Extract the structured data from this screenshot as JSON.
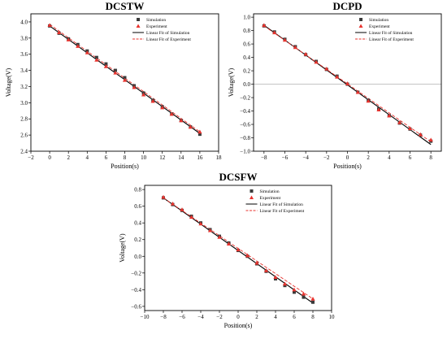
{
  "colors": {
    "simulation": "#3a3a3a",
    "experiment": "#e8332e",
    "sim_fit": "#000000",
    "exp_fit": "#e8332e",
    "zero_line": "#bbbbbb"
  },
  "legend_labels": [
    "Simulation",
    "Experiment",
    "Linear Fit of Simulation",
    "Linear Fit of Experiment"
  ],
  "chart_data": [
    {
      "type": "scatter",
      "title": "DCSTW",
      "xlabel": "Position(s)",
      "ylabel": "Voltage(V)",
      "xlim": [
        -2,
        18
      ],
      "ylim": [
        2.4,
        4.1
      ],
      "xticks": [
        -2,
        0,
        2,
        4,
        6,
        8,
        10,
        12,
        14,
        16,
        18
      ],
      "yticks": [
        2.4,
        2.6,
        2.8,
        3.0,
        3.2,
        3.4,
        3.6,
        3.8,
        4.0
      ],
      "tick_labels_x": [
        "−2",
        "0",
        "2",
        "4",
        "6",
        "8",
        "10",
        "12",
        "14",
        "16",
        "18"
      ],
      "tick_labels_y": [
        "2.4",
        "2.6",
        "2.8",
        "3.0",
        "3.2",
        "3.4",
        "3.6",
        "3.8",
        "4.0"
      ],
      "legend_position": "top-right",
      "zero_line": false,
      "series": [
        {
          "name": "Simulation",
          "marker": "square",
          "x": [
            0,
            1,
            2,
            3,
            4,
            5,
            6,
            7,
            8,
            9,
            10,
            11,
            12,
            13,
            14,
            15,
            16
          ],
          "y": [
            3.95,
            3.86,
            3.79,
            3.72,
            3.64,
            3.56,
            3.48,
            3.4,
            3.31,
            3.21,
            3.12,
            3.03,
            2.95,
            2.86,
            2.78,
            2.7,
            2.61
          ]
        },
        {
          "name": "Experiment",
          "marker": "triangle",
          "x": [
            0,
            1,
            2,
            3,
            4,
            5,
            6,
            7,
            8,
            9,
            10,
            11,
            12,
            13,
            14,
            15,
            16
          ],
          "y": [
            3.96,
            3.87,
            3.78,
            3.7,
            3.62,
            3.53,
            3.45,
            3.37,
            3.28,
            3.19,
            3.1,
            3.02,
            2.94,
            2.86,
            2.78,
            2.7,
            2.64
          ]
        },
        {
          "name": "Linear Fit of Simulation",
          "line": "solid",
          "x": [
            0,
            16
          ],
          "y": [
            3.95,
            2.62
          ]
        },
        {
          "name": "Linear Fit of Experiment",
          "line": "dashed",
          "x": [
            0,
            16
          ],
          "y": [
            3.97,
            2.64
          ]
        }
      ]
    },
    {
      "type": "scatter",
      "title": "DCPD",
      "xlabel": "Position(s)",
      "ylabel": "Voltage(V)",
      "xlim": [
        -9,
        9
      ],
      "ylim": [
        -1.0,
        1.05
      ],
      "xticks": [
        -8,
        -6,
        -4,
        -2,
        0,
        2,
        4,
        6,
        8
      ],
      "yticks": [
        -1.0,
        -0.8,
        -0.6,
        -0.4,
        -0.2,
        0.0,
        0.2,
        0.4,
        0.6,
        0.8,
        1.0
      ],
      "tick_labels_x": [
        "−8",
        "−6",
        "−4",
        "−2",
        "0",
        "2",
        "4",
        "6",
        "8"
      ],
      "tick_labels_y": [
        "−1.0",
        "−0.8",
        "−0.6",
        "−0.4",
        "−0.2",
        "0.0",
        "0.2",
        "0.4",
        "0.6",
        "0.8",
        "1.0"
      ],
      "legend_position": "top-right",
      "zero_line": true,
      "series": [
        {
          "name": "Simulation",
          "marker": "square",
          "x": [
            -8,
            -7,
            -6,
            -5,
            -4,
            -3,
            -2,
            -1,
            0,
            1,
            2,
            3,
            4,
            5,
            6,
            7,
            8
          ],
          "y": [
            0.87,
            0.78,
            0.67,
            0.56,
            0.44,
            0.34,
            0.22,
            0.12,
            0.0,
            -0.12,
            -0.24,
            -0.37,
            -0.47,
            -0.58,
            -0.67,
            -0.76,
            -0.85
          ]
        },
        {
          "name": "Experiment",
          "marker": "triangle",
          "x": [
            -8,
            -7,
            -6,
            -5,
            -4,
            -3,
            -2,
            -1,
            0,
            1,
            2,
            3,
            4,
            5,
            6,
            7,
            8
          ],
          "y": [
            0.88,
            0.77,
            0.66,
            0.55,
            0.45,
            0.33,
            0.23,
            0.11,
            0.01,
            -0.12,
            -0.25,
            -0.38,
            -0.47,
            -0.57,
            -0.66,
            -0.75,
            -0.83
          ]
        },
        {
          "name": "Linear Fit of Simulation",
          "line": "solid",
          "x": [
            -8,
            8
          ],
          "y": [
            0.88,
            -0.9
          ]
        },
        {
          "name": "Linear Fit of Experiment",
          "line": "dashed",
          "x": [
            -8,
            8
          ],
          "y": [
            0.87,
            -0.86
          ]
        }
      ]
    },
    {
      "type": "scatter",
      "title": "DCSFW",
      "xlabel": "Position(s)",
      "ylabel": "Voltage(V)",
      "xlim": [
        -10,
        10
      ],
      "ylim": [
        -0.65,
        0.85
      ],
      "xticks": [
        -10,
        -8,
        -6,
        -4,
        -2,
        0,
        2,
        4,
        6,
        8,
        10
      ],
      "yticks": [
        -0.6,
        -0.4,
        -0.2,
        0.0,
        0.2,
        0.4,
        0.6,
        0.8
      ],
      "tick_labels_x": [
        "−10",
        "−8",
        "−6",
        "−4",
        "−2",
        "0",
        "2",
        "4",
        "6",
        "8",
        "10"
      ],
      "tick_labels_y": [
        "−0.6",
        "−0.4",
        "−0.2",
        "0.0",
        "0.2",
        "0.4",
        "0.6",
        "0.8"
      ],
      "legend_position": "top-right",
      "zero_line": false,
      "series": [
        {
          "name": "Simulation",
          "marker": "square",
          "x": [
            -8,
            -7,
            -6,
            -5,
            -4,
            -3,
            -2,
            -1,
            0,
            1,
            2,
            3,
            4,
            5,
            6,
            7,
            8
          ],
          "y": [
            0.7,
            0.62,
            0.55,
            0.48,
            0.4,
            0.32,
            0.24,
            0.16,
            0.07,
            0.0,
            -0.09,
            -0.18,
            -0.27,
            -0.35,
            -0.43,
            -0.49,
            -0.55
          ]
        },
        {
          "name": "Experiment",
          "marker": "triangle",
          "x": [
            -8,
            -7,
            -6,
            -5,
            -4,
            -3,
            -2,
            -1,
            0,
            1,
            2,
            3,
            4,
            5,
            6,
            7,
            8
          ],
          "y": [
            0.71,
            0.63,
            0.56,
            0.47,
            0.39,
            0.31,
            0.23,
            0.15,
            0.08,
            0.01,
            -0.08,
            -0.17,
            -0.25,
            -0.33,
            -0.4,
            -0.45,
            -0.51
          ]
        },
        {
          "name": "Linear Fit of Simulation",
          "line": "solid",
          "x": [
            -8,
            8
          ],
          "y": [
            0.7,
            -0.56
          ]
        },
        {
          "name": "Linear Fit of Experiment",
          "line": "dashed",
          "x": [
            -8,
            8
          ],
          "y": [
            0.7,
            -0.51
          ]
        }
      ]
    }
  ]
}
